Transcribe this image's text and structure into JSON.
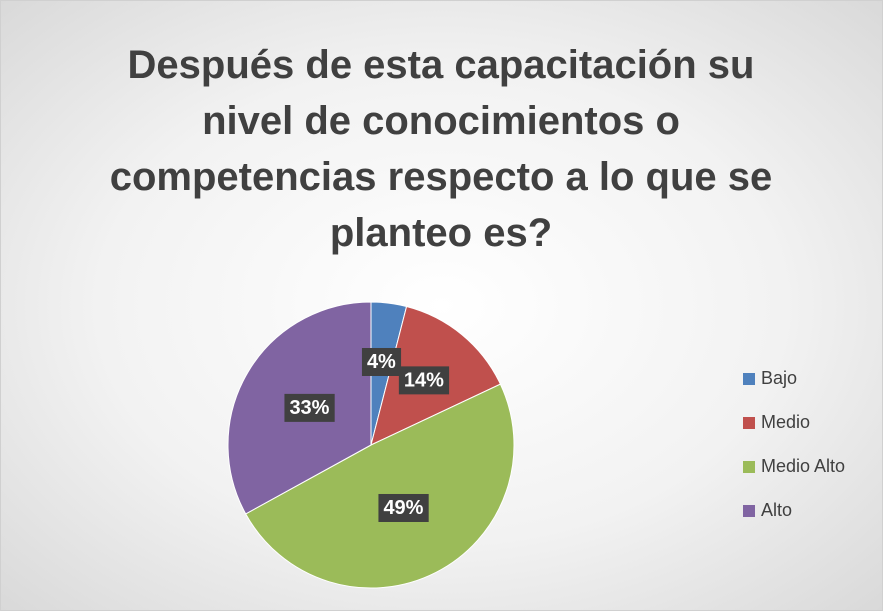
{
  "chart_data": {
    "type": "pie",
    "title": "Después de esta capacitación su nivel de conocimientos o competencias respecto a lo que se planteo es?",
    "categories": [
      "Bajo",
      "Medio",
      "Medio Alto",
      "Alto"
    ],
    "values": [
      4,
      14,
      49,
      33
    ],
    "value_labels": [
      "4%",
      "14%",
      "49%",
      "33%"
    ],
    "colors": [
      "#4f81bd",
      "#c0504d",
      "#9bbb59",
      "#8064a2"
    ],
    "legend": "right"
  }
}
